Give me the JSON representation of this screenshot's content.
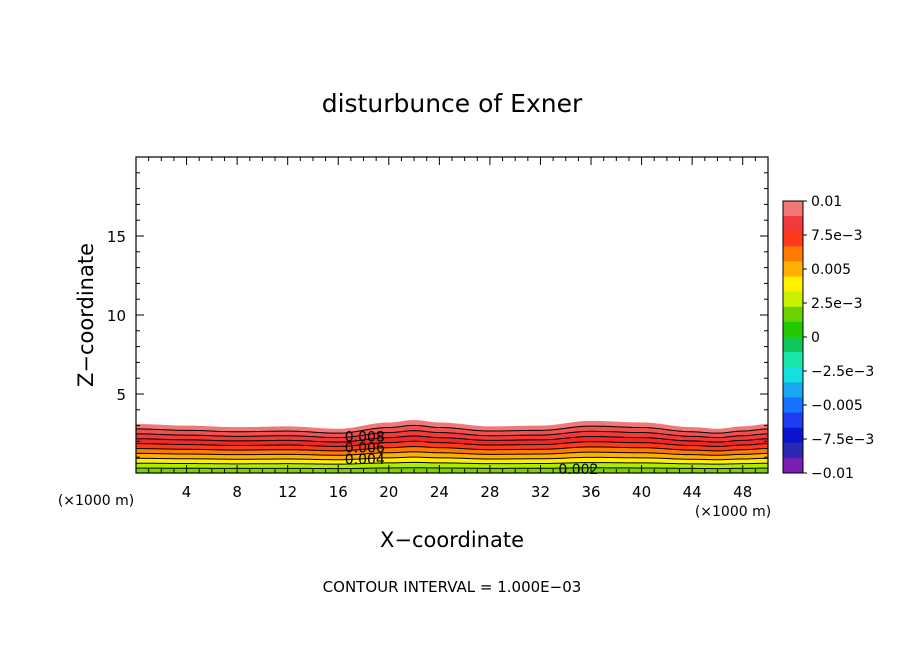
{
  "chart_data": {
    "type": "contour",
    "title": "disturbunce of Exner",
    "xlabel": "X−coordinate",
    "ylabel": "Z−coordinate",
    "x_unit_label_left": "(×1000 m)",
    "x_unit_label_right": "(×1000 m)",
    "footer": "CONTOUR INTERVAL = 1.000E−03",
    "xlim": [
      0,
      50
    ],
    "ylim": [
      0,
      20
    ],
    "x_ticks": [
      4,
      8,
      12,
      16,
      20,
      24,
      28,
      32,
      36,
      40,
      44,
      48
    ],
    "x_tick_labels": [
      "4",
      "8",
      "12",
      "16",
      "20",
      "24",
      "28",
      "32",
      "36",
      "40",
      "44",
      "48"
    ],
    "y_ticks": [
      5,
      10,
      15
    ],
    "y_tick_labels": [
      "5",
      "10",
      "15"
    ],
    "field_top": {
      "x": [
        0,
        4,
        8,
        12,
        16,
        20,
        22,
        24,
        28,
        32,
        36,
        40,
        44,
        46,
        48,
        50
      ],
      "z": [
        3.1,
        3.0,
        2.9,
        2.95,
        2.8,
        3.2,
        3.35,
        3.2,
        2.95,
        3.0,
        3.3,
        3.2,
        2.9,
        2.8,
        2.95,
        3.1
      ]
    },
    "contour_levels": [
      0.001,
      0.002,
      0.003,
      0.004,
      0.005,
      0.006,
      0.007,
      0.008,
      0.009
    ],
    "contour_labels": [
      {
        "text": "0.008",
        "x": 18.1,
        "z": 2.3
      },
      {
        "text": "0.006",
        "x": 18.1,
        "z": 1.6
      },
      {
        "text": "0.004",
        "x": 18.1,
        "z": 0.9
      },
      {
        "text": "0.002",
        "x": 35.0,
        "z": 0.25
      }
    ],
    "colorbar": {
      "tick_labels": [
        "0.01",
        "7.5e−3",
        "0.005",
        "2.5e−3",
        "0",
        "−2.5e−3",
        "−0.005",
        "−7.5e−3",
        "−0.01"
      ],
      "colors": [
        "#f07878",
        "#f23a3a",
        "#ff3a1a",
        "#ff7a00",
        "#ffb000",
        "#fff000",
        "#c8f000",
        "#6ad200",
        "#22c800",
        "#10c85a",
        "#19e6a8",
        "#14e0e0",
        "#19a8f0",
        "#1672ff",
        "#1e3cf0",
        "#0a14cd",
        "#2828b4",
        "#7a1eb4"
      ]
    }
  }
}
